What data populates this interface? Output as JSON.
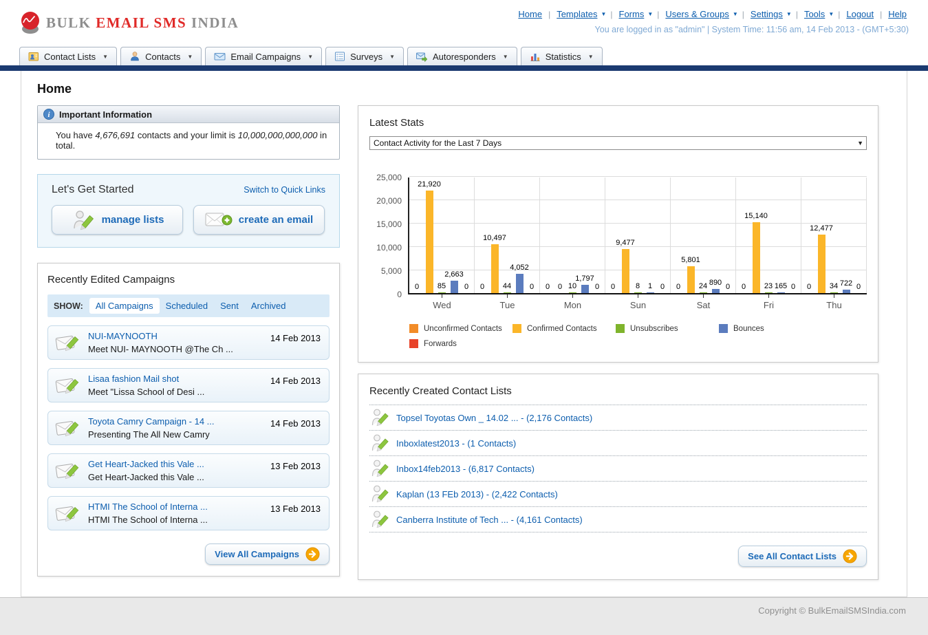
{
  "header": {
    "nav": [
      {
        "label": "Home",
        "dropdown": false
      },
      {
        "label": "Templates",
        "dropdown": true
      },
      {
        "label": "Forms",
        "dropdown": true
      },
      {
        "label": "Users & Groups",
        "dropdown": true
      },
      {
        "label": "Settings",
        "dropdown": true
      },
      {
        "label": "Tools",
        "dropdown": true
      },
      {
        "label": "Logout",
        "dropdown": false
      },
      {
        "label": "Help",
        "dropdown": false
      }
    ],
    "status": "You are logged in as \"admin\" | System Time: 11:56 am, 14 Feb 2013 - (GMT+5:30)",
    "logo": {
      "part1": "BULK",
      "part2": "EMAIL SMS",
      "part3": "INDIA"
    }
  },
  "tabs": [
    {
      "label": "Contact Lists",
      "icon": "contact-lists-icon"
    },
    {
      "label": "Contacts",
      "icon": "contacts-icon"
    },
    {
      "label": "Email Campaigns",
      "icon": "email-campaigns-icon"
    },
    {
      "label": "Surveys",
      "icon": "surveys-icon"
    },
    {
      "label": "Autoresponders",
      "icon": "autoresponders-icon"
    },
    {
      "label": "Statistics",
      "icon": "statistics-icon"
    }
  ],
  "page_title": "Home",
  "important_info": {
    "title": "Important Information",
    "body_prefix": "You have ",
    "contacts_count": "4,676,691",
    "body_middle": " contacts and your limit is ",
    "limit": "10,000,000,000,000",
    "body_suffix": " in total."
  },
  "get_started": {
    "title": "Let's Get Started",
    "switch_link": "Switch to Quick Links",
    "buttons": [
      {
        "label": "manage lists",
        "icon": "manage-lists-icon"
      },
      {
        "label": "create an email",
        "icon": "create-email-icon"
      }
    ]
  },
  "campaigns": {
    "title": "Recently Edited Campaigns",
    "show_label": "SHOW:",
    "filters": [
      "All Campaigns",
      "Scheduled",
      "Sent",
      "Archived"
    ],
    "active_filter": "All Campaigns",
    "items": [
      {
        "title": "NUI-MAYNOOTH",
        "subtitle": "Meet NUI- MAYNOOTH @The Ch ...",
        "date": "14 Feb 2013"
      },
      {
        "title": "Lisaa fashion Mail shot",
        "subtitle": "Meet \"Lissa School of Desi ...",
        "date": "14 Feb 2013"
      },
      {
        "title": "Toyota Camry Campaign - 14 ...",
        "subtitle": "Presenting The All New Camry",
        "date": "14 Feb 2013"
      },
      {
        "title": "Get Heart-Jacked this Vale ...",
        "subtitle": "Get Heart-Jacked this Vale ...",
        "date": "13 Feb 2013"
      },
      {
        "title": "HTMI The School of Interna ...",
        "subtitle": "HTMI The School of Interna ...",
        "date": "13 Feb 2013"
      }
    ],
    "view_all_label": "View All Campaigns"
  },
  "stats": {
    "title": "Latest Stats",
    "dropdown_value": "Contact Activity for the Last 7 Days"
  },
  "chart_data": {
    "type": "bar",
    "title": "Contact Activity for the Last 7 Days",
    "categories": [
      "Wed",
      "Tue",
      "Mon",
      "Sun",
      "Sat",
      "Fri",
      "Thu"
    ],
    "series": [
      {
        "name": "Unconfirmed Contacts",
        "color": "#F28C28",
        "values": [
          0,
          0,
          0,
          0,
          0,
          0,
          0
        ]
      },
      {
        "name": "Confirmed Contacts",
        "color": "#FBB629",
        "values": [
          21920,
          10497,
          0,
          9477,
          5801,
          15140,
          12477
        ]
      },
      {
        "name": "Unsubscribes",
        "color": "#7FB42C",
        "values": [
          85,
          44,
          10,
          8,
          24,
          23,
          34
        ]
      },
      {
        "name": "Bounces",
        "color": "#5B7CBE",
        "values": [
          2663,
          4052,
          1797,
          1,
          890,
          165,
          722
        ]
      },
      {
        "name": "Forwards",
        "color": "#E8432A",
        "values": [
          0,
          0,
          0,
          0,
          0,
          0,
          0
        ]
      }
    ],
    "ylim": [
      0,
      25000
    ],
    "ytick_interval": 5000,
    "grid": true,
    "legend_position": "bottom"
  },
  "contact_lists": {
    "title": "Recently Created Contact Lists",
    "separator": " - ",
    "items": [
      {
        "name": "Topsel Toyotas Own _ 14.02 ...",
        "count": "(2,176 Contacts)"
      },
      {
        "name": "Inboxlatest2013",
        "count": "(1 Contacts)"
      },
      {
        "name": "Inbox14feb2013",
        "count": "(6,817 Contacts)"
      },
      {
        "name": "Kaplan (13 FEb 2013)",
        "count": "(2,422 Contacts)"
      },
      {
        "name": "Canberra Institute of Tech ...",
        "count": "(4,161 Contacts)"
      }
    ],
    "see_all_label": "See All Contact Lists"
  },
  "footer": {
    "copyright": "Copyright © BulkEmailSMSIndia.com"
  }
}
